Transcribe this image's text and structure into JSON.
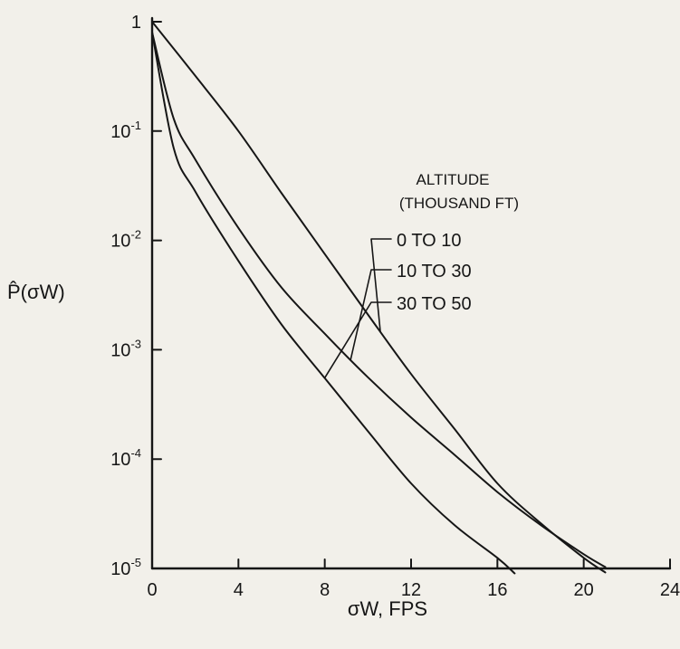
{
  "chart_data": {
    "type": "line",
    "title": "",
    "xlabel": "σW, FPS",
    "ylabel": "P̂(σW)",
    "xlim": [
      0,
      24
    ],
    "ylim": [
      1e-05,
      1
    ],
    "y_scale": "log",
    "grid": false,
    "x_ticks": [
      {
        "value": 0,
        "label": "0"
      },
      {
        "value": 4,
        "label": "4"
      },
      {
        "value": 8,
        "label": "8"
      },
      {
        "value": 12,
        "label": "12"
      },
      {
        "value": 16,
        "label": "16"
      },
      {
        "value": 20,
        "label": "20"
      },
      {
        "value": 24,
        "label": "24"
      }
    ],
    "y_ticks": [
      {
        "value": 1,
        "base": "1",
        "exp": ""
      },
      {
        "value": 0.1,
        "base": "10",
        "exp": "-1"
      },
      {
        "value": 0.01,
        "base": "10",
        "exp": "-2"
      },
      {
        "value": 0.001,
        "base": "10",
        "exp": "-3"
      },
      {
        "value": 0.0001,
        "base": "10",
        "exp": "-4"
      },
      {
        "value": 1e-05,
        "base": "10",
        "exp": "-5"
      }
    ],
    "legend_title": [
      "ALTITUDE",
      "(THOUSAND FT)"
    ],
    "series": [
      {
        "name": "0 TO 10",
        "x": [
          0,
          2,
          4,
          6,
          8,
          10,
          12,
          14,
          16,
          18,
          20,
          21
        ],
        "y": [
          1,
          0.32,
          0.1,
          0.027,
          0.0075,
          0.0021,
          0.0006,
          0.00019,
          6e-05,
          2.6e-05,
          1.25e-05,
          9.2e-06
        ]
      },
      {
        "name": "10 TO 30",
        "x": [
          0,
          1,
          2,
          4,
          6,
          8,
          10,
          12,
          14,
          16,
          18,
          20,
          21
        ],
        "y": [
          0.8,
          0.13,
          0.055,
          0.013,
          0.0037,
          0.0014,
          0.00056,
          0.00024,
          0.00011,
          5e-05,
          2.5e-05,
          1.35e-05,
          1.03e-05
        ]
      },
      {
        "name": "30 TO 50",
        "x": [
          0,
          1,
          2,
          4,
          6,
          8,
          10,
          12,
          14,
          16,
          16.8
        ],
        "y": [
          0.8,
          0.07,
          0.028,
          0.0065,
          0.0017,
          0.00055,
          0.00018,
          6e-05,
          2.5e-05,
          1.25e-05,
          9e-06
        ]
      }
    ]
  }
}
